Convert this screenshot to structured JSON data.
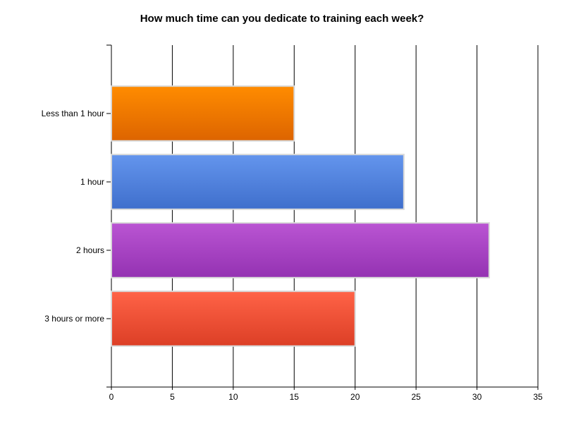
{
  "chart_data": {
    "type": "bar",
    "orientation": "horizontal",
    "title": "How much time can you dedicate to training each week?",
    "xlabel": "",
    "ylabel": "",
    "categories": [
      "Less than 1 hour",
      "1 hour",
      "2 hours",
      "3 hours or more"
    ],
    "values": [
      15,
      24,
      31,
      20
    ],
    "xlim": [
      0,
      35
    ],
    "xticks": [
      0,
      5,
      10,
      15,
      20,
      25,
      30,
      35
    ],
    "grid": "vertical",
    "legend": "none",
    "colors": [
      {
        "top": "#ff8c00",
        "bottom": "#dd6400"
      },
      {
        "top": "#6495ed",
        "bottom": "#3f6fcc"
      },
      {
        "top": "#ba55d3",
        "bottom": "#9432b2"
      },
      {
        "top": "#ff6347",
        "bottom": "#dc3f26"
      }
    ]
  }
}
